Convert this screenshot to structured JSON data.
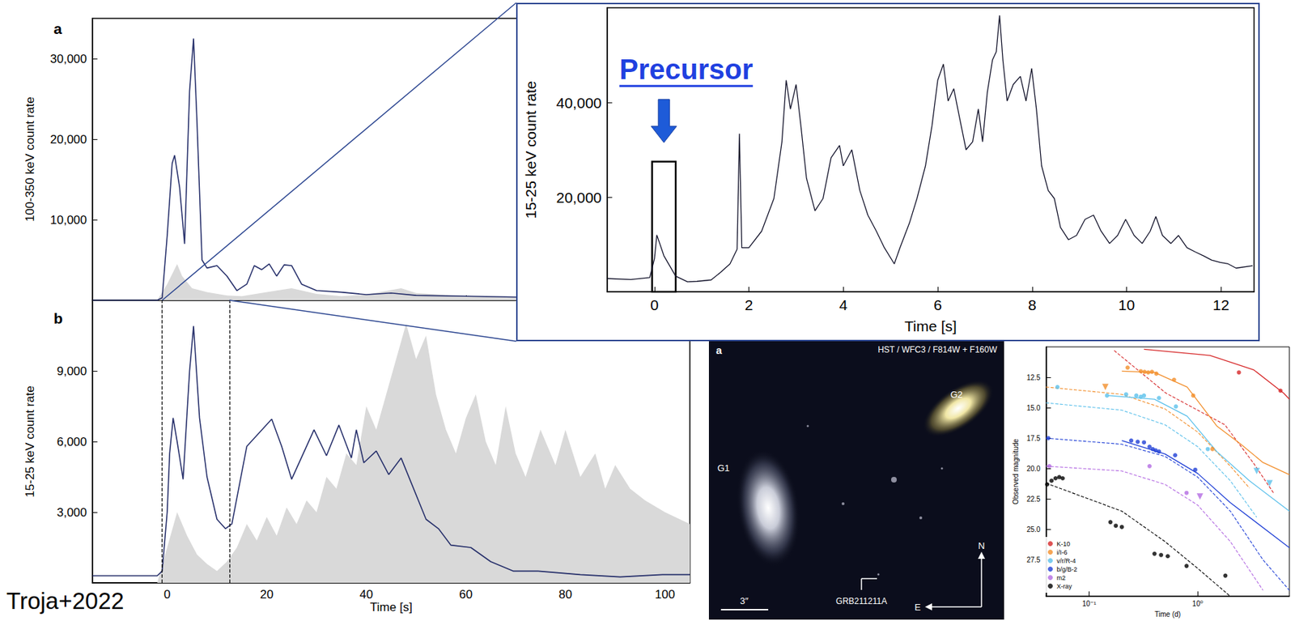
{
  "credit": "Troja+2022",
  "chart_data": [
    {
      "type": "line",
      "panel": "a",
      "y_label": "100-350 keV count rate",
      "tick_labels": "y",
      "xlim": [
        -15,
        105
      ],
      "xticks": [
        0,
        20,
        40,
        60,
        80,
        100
      ],
      "ylim": [
        0,
        35000
      ],
      "yticks": [
        {
          "value": 10000,
          "label": "10,000"
        },
        {
          "value": 20000,
          "label": "20,000"
        },
        {
          "value": 30000,
          "label": "30,000"
        }
      ],
      "series": [
        {
          "type": "area",
          "color": "#d9d9d9",
          "x": [
            -15,
            -2,
            0,
            2,
            3,
            5,
            8,
            12,
            15,
            20,
            25,
            30,
            35,
            40,
            47,
            50,
            60,
            70,
            80,
            100,
            105
          ],
          "values": [
            0,
            0,
            2000,
            4500,
            3000,
            1500,
            1000,
            600,
            500,
            1000,
            1500,
            800,
            500,
            700,
            1500,
            900,
            500,
            400,
            300,
            200,
            150
          ]
        },
        {
          "type": "line",
          "color": "#27306b",
          "x": [
            -15,
            -2,
            -1,
            0,
            1,
            1.5,
            2.5,
            3.5,
            4.5,
            5.3,
            6,
            7,
            8,
            10,
            12,
            14,
            16,
            17.5,
            19,
            20.5,
            22,
            23.5,
            25,
            27,
            30,
            35,
            40,
            45,
            50,
            60,
            70,
            80,
            90,
            100,
            105
          ],
          "values": [
            0,
            0,
            300,
            8000,
            17000,
            18000,
            14000,
            7000,
            26000,
            32500,
            22000,
            5000,
            4000,
            4300,
            3000,
            1200,
            2000,
            4300,
            3800,
            4500,
            3000,
            4400,
            4300,
            2000,
            1200,
            1000,
            700,
            900,
            600,
            500,
            400,
            300,
            250,
            200,
            200
          ]
        }
      ]
    },
    {
      "type": "line",
      "panel": "b",
      "x_label": "Time [s]",
      "y_label": "15-25 keV count rate",
      "xlim": [
        -15,
        105
      ],
      "xticks": [
        0,
        20,
        40,
        60,
        80,
        100
      ],
      "ylim": [
        0,
        12000
      ],
      "yticks": [
        {
          "value": 3000,
          "label": "3,000"
        },
        {
          "value": 6000,
          "label": "6,000"
        },
        {
          "value": 9000,
          "label": "9,000"
        }
      ],
      "zoom_window": [
        -1,
        12.5
      ],
      "series": [
        {
          "type": "area",
          "color": "#d9d9d9",
          "x": [
            -15,
            -2,
            0,
            2,
            4,
            6,
            8,
            10,
            12,
            14,
            16,
            18,
            20,
            22,
            24,
            26,
            28,
            30,
            32,
            34,
            36,
            38,
            40,
            42,
            44,
            46,
            48,
            50,
            52,
            54,
            56,
            58,
            60,
            62,
            64,
            66,
            68,
            70,
            72,
            75,
            78,
            80,
            83,
            86,
            88,
            90,
            93,
            96,
            100,
            105
          ],
          "values": [
            0,
            0,
            1500,
            3000,
            2000,
            1200,
            800,
            500,
            900,
            1500,
            2500,
            1800,
            2800,
            2000,
            3200,
            2500,
            3500,
            3000,
            4500,
            4000,
            5500,
            5000,
            7500,
            6500,
            8000,
            9500,
            11000,
            9500,
            10500,
            8000,
            6500,
            5500,
            7000,
            8000,
            6000,
            5000,
            7500,
            5500,
            4500,
            6500,
            5000,
            6500,
            4500,
            5500,
            4000,
            5000,
            4000,
            3500,
            3000,
            2500
          ]
        },
        {
          "type": "line",
          "color": "#27306b",
          "x": [
            -15,
            -2,
            -1,
            0,
            0.5,
            1.2,
            2,
            3.2,
            4.5,
            5.3,
            6.5,
            8,
            10,
            11.7,
            13,
            16,
            21,
            23,
            25,
            29.5,
            32,
            34.5,
            37,
            38,
            39.5,
            42,
            44.5,
            47,
            49.5,
            52,
            54.5,
            57,
            61,
            65,
            69.5,
            74.5,
            83,
            91,
            99.5,
            105
          ],
          "values": [
            300,
            300,
            500,
            3000,
            5500,
            7000,
            6000,
            4400,
            9000,
            10900,
            7000,
            4500,
            2700,
            2300,
            2500,
            5800,
            6950,
            5800,
            4400,
            6500,
            5400,
            6700,
            5300,
            6500,
            5100,
            5600,
            4600,
            5300,
            4000,
            2700,
            2300,
            1600,
            1500,
            900,
            500,
            500,
            350,
            250,
            350,
            350
          ]
        }
      ]
    },
    {
      "type": "line",
      "x_label": "Time [s]",
      "y_label": "15-25 keV count rate",
      "xlim": [
        -1,
        12.7
      ],
      "xticks": [
        0,
        2,
        4,
        6,
        8,
        10,
        12
      ],
      "ylim": [
        0,
        60000
      ],
      "yticks": [
        {
          "value": 20000,
          "label": "20,000"
        },
        {
          "value": 40000,
          "label": "40,000"
        }
      ],
      "annotation": {
        "text": "Precursor",
        "window": [
          -0.05,
          0.45
        ],
        "height": 27500
      },
      "series": [
        {
          "type": "line",
          "color": "#101028",
          "x": [
            -1,
            -0.5,
            -0.1,
            0,
            0.05,
            0.2,
            0.45,
            0.7,
            0.9,
            1.2,
            1.4,
            1.6,
            1.75,
            1.8,
            1.85,
            2,
            2.27,
            2.53,
            2.7,
            2.79,
            2.88,
            3,
            3.1,
            3.22,
            3.4,
            3.57,
            3.74,
            3.92,
            4,
            4.18,
            4.35,
            4.52,
            4.7,
            4.87,
            5.08,
            5.2,
            5.4,
            5.56,
            5.74,
            5.88,
            6,
            6.12,
            6.22,
            6.34,
            6.46,
            6.6,
            6.74,
            6.86,
            6.95,
            7.05,
            7.16,
            7.24,
            7.31,
            7.38,
            7.47,
            7.6,
            7.75,
            7.87,
            7.99,
            8.09,
            8.2,
            8.34,
            8.47,
            8.6,
            8.77,
            8.94,
            9.12,
            9.3,
            9.46,
            9.64,
            9.81,
            9.98,
            10.16,
            10.33,
            10.5,
            10.62,
            10.76,
            10.94,
            11.1,
            11.28,
            11.46,
            11.63,
            11.8,
            11.98,
            12.15,
            12.32,
            12.67
          ],
          "values": [
            2800,
            2600,
            3000,
            7000,
            12000,
            7600,
            3300,
            2100,
            2200,
            2500,
            4100,
            5900,
            9000,
            33400,
            9300,
            9300,
            12800,
            19700,
            31700,
            44700,
            38600,
            43800,
            35200,
            24000,
            17100,
            19700,
            28300,
            30900,
            26600,
            30000,
            21400,
            16200,
            12800,
            9300,
            5900,
            9300,
            14500,
            19700,
            26600,
            35200,
            44700,
            48100,
            40300,
            42900,
            36900,
            30000,
            31700,
            38600,
            31700,
            42100,
            49000,
            50700,
            58400,
            49000,
            40300,
            43800,
            45500,
            40300,
            47200,
            38600,
            26600,
            21400,
            19700,
            13600,
            11000,
            11900,
            15300,
            16200,
            12800,
            10200,
            11900,
            15300,
            11900,
            10200,
            12800,
            15900,
            11900,
            10200,
            11900,
            9300,
            8400,
            7600,
            6700,
            6200,
            5900,
            5000,
            5500
          ]
        }
      ]
    },
    {
      "type": "scatter",
      "x_label": "Time (d)",
      "y_label": "Observed magnitude",
      "log": "x",
      "legend": "lower left",
      "xlim": [
        0.04,
        7
      ],
      "xticks": [
        {
          "value": 0.1,
          "label": "10⁻¹"
        },
        {
          "value": 1,
          "label": "10⁰"
        }
      ],
      "ylim": [
        30.5,
        10
      ],
      "yticks": [
        {
          "value": 12.5,
          "label": "12.5"
        },
        {
          "value": 15,
          "label": "15.0"
        },
        {
          "value": 17.5,
          "label": "17.5"
        },
        {
          "value": 20,
          "label": "20.0"
        },
        {
          "value": 22.5,
          "label": "22.5"
        },
        {
          "value": 25,
          "label": "25.0"
        },
        {
          "value": 27.5,
          "label": "27.5"
        }
      ],
      "series": [
        {
          "name": "K-10",
          "color": "#d62728",
          "marker": "circle",
          "x": [
            2.4,
            5.8
          ],
          "values": [
            12.1,
            13.6
          ],
          "model_x": [
            0.32,
            1.3,
            3.3,
            6.2,
            7
          ],
          "model_values": [
            10.2,
            10.7,
            11.9,
            13.8,
            14.3
          ],
          "afterglow_x": [
            0.17,
            0.51,
            1.78,
            3.3,
            5
          ],
          "afterglow_values": [
            10.3,
            13.8,
            16.4,
            19.6,
            22
          ]
        },
        {
          "name": "i/I-6",
          "color": "#f28e2b",
          "marker": "circle",
          "x": [
            0.226,
            0.299,
            0.324,
            0.35,
            0.379,
            0.416,
            0.606,
            0.91,
            1.37
          ],
          "values": [
            11.7,
            12.0,
            12.05,
            12.1,
            12.05,
            12.2,
            12.7,
            14.0,
            18.4
          ],
          "limit_x": [
            0.141
          ],
          "limit_values": [
            13.3
          ],
          "model_x": [
            0.2,
            0.4,
            0.8,
            1.5,
            2.5,
            4,
            7
          ],
          "model_values": [
            12.0,
            12.1,
            13.3,
            16.5,
            18.0,
            19.5,
            20.5
          ],
          "afterglow_x": [
            0.04,
            0.2,
            0.5,
            1,
            2,
            3
          ],
          "afterglow_values": [
            13.3,
            13.9,
            15.1,
            17,
            19.8,
            21.6
          ]
        },
        {
          "name": "v/r/R-4",
          "color": "#5bc0eb",
          "marker": "circle",
          "x": [
            0.051,
            0.146,
            0.219,
            0.272,
            0.299,
            0.32,
            0.44,
            0.63,
            1.24
          ],
          "values": [
            13.3,
            14.0,
            13.9,
            14.0,
            14.1,
            14.0,
            14.2,
            14.9,
            18.4
          ],
          "limit_x": [
            3.5,
            4.6
          ],
          "limit_values": [
            20.2,
            21.2
          ],
          "model_x": [
            0.15,
            0.4,
            0.8,
            1.5,
            3,
            7
          ],
          "model_values": [
            14.0,
            14.3,
            15.7,
            18.6,
            21.0,
            23.5
          ],
          "afterglow_x": [
            0.04,
            0.2,
            0.5,
            1,
            2,
            3.5
          ],
          "afterglow_values": [
            14.6,
            15.2,
            16.4,
            18.2,
            21.0,
            24.0
          ]
        },
        {
          "name": "b/g/B-2",
          "color": "#1f3fd6",
          "marker": "circle",
          "x": [
            0.042,
            0.244,
            0.28,
            0.32,
            0.36,
            0.385,
            0.41,
            0.44,
            0.62,
            0.95
          ],
          "values": [
            17.5,
            17.7,
            17.8,
            17.85,
            18.2,
            18.4,
            18.5,
            18.6,
            18.9,
            20.1
          ],
          "model_x": [
            0.2,
            0.5,
            1,
            2,
            7
          ],
          "model_values": [
            17.7,
            18.8,
            20.4,
            22.8,
            26.5
          ],
          "afterglow_x": [
            0.04,
            0.2,
            0.5,
            1,
            2,
            4,
            7
          ],
          "afterglow_values": [
            17.5,
            18.0,
            19.0,
            20.7,
            23.5,
            27.5,
            30
          ]
        },
        {
          "name": "m2",
          "color": "#b36ae2",
          "marker": "circle",
          "x": [
            0.043,
            0.36,
            0.79
          ],
          "values": [
            19.8,
            19.8,
            22.0
          ],
          "limit_x": [
            1.05
          ],
          "limit_values": [
            22.3
          ],
          "afterglow_x": [
            0.04,
            0.2,
            0.5,
            1,
            2,
            4
          ],
          "afterglow_values": [
            19.8,
            20.2,
            21.3,
            23.0,
            26.0,
            30
          ]
        },
        {
          "name": "X-ray",
          "color": "#000000",
          "marker": "circle",
          "x": [
            0.041,
            0.045,
            0.049,
            0.053,
            0.057,
            0.157,
            0.176,
            0.2,
            0.4,
            0.46,
            0.53,
            0.79,
            1.8
          ],
          "values": [
            21.3,
            21.0,
            20.8,
            20.7,
            20.8,
            24.4,
            24.7,
            24.8,
            27.0,
            27.1,
            27.2,
            28.0,
            28.8
          ],
          "afterglow_x": [
            0.04,
            0.2,
            0.5,
            1,
            2
          ],
          "afterglow_values": [
            21.2,
            23.5,
            26.0,
            28.2,
            30.5
          ]
        }
      ]
    }
  ],
  "image": {
    "panel": "a",
    "title": "HST / WFC3 / F814W + F160W",
    "sources": [
      "G1",
      "G2"
    ],
    "target": "GRB211211A",
    "compass": [
      "N",
      "E"
    ],
    "scale": "3″"
  }
}
